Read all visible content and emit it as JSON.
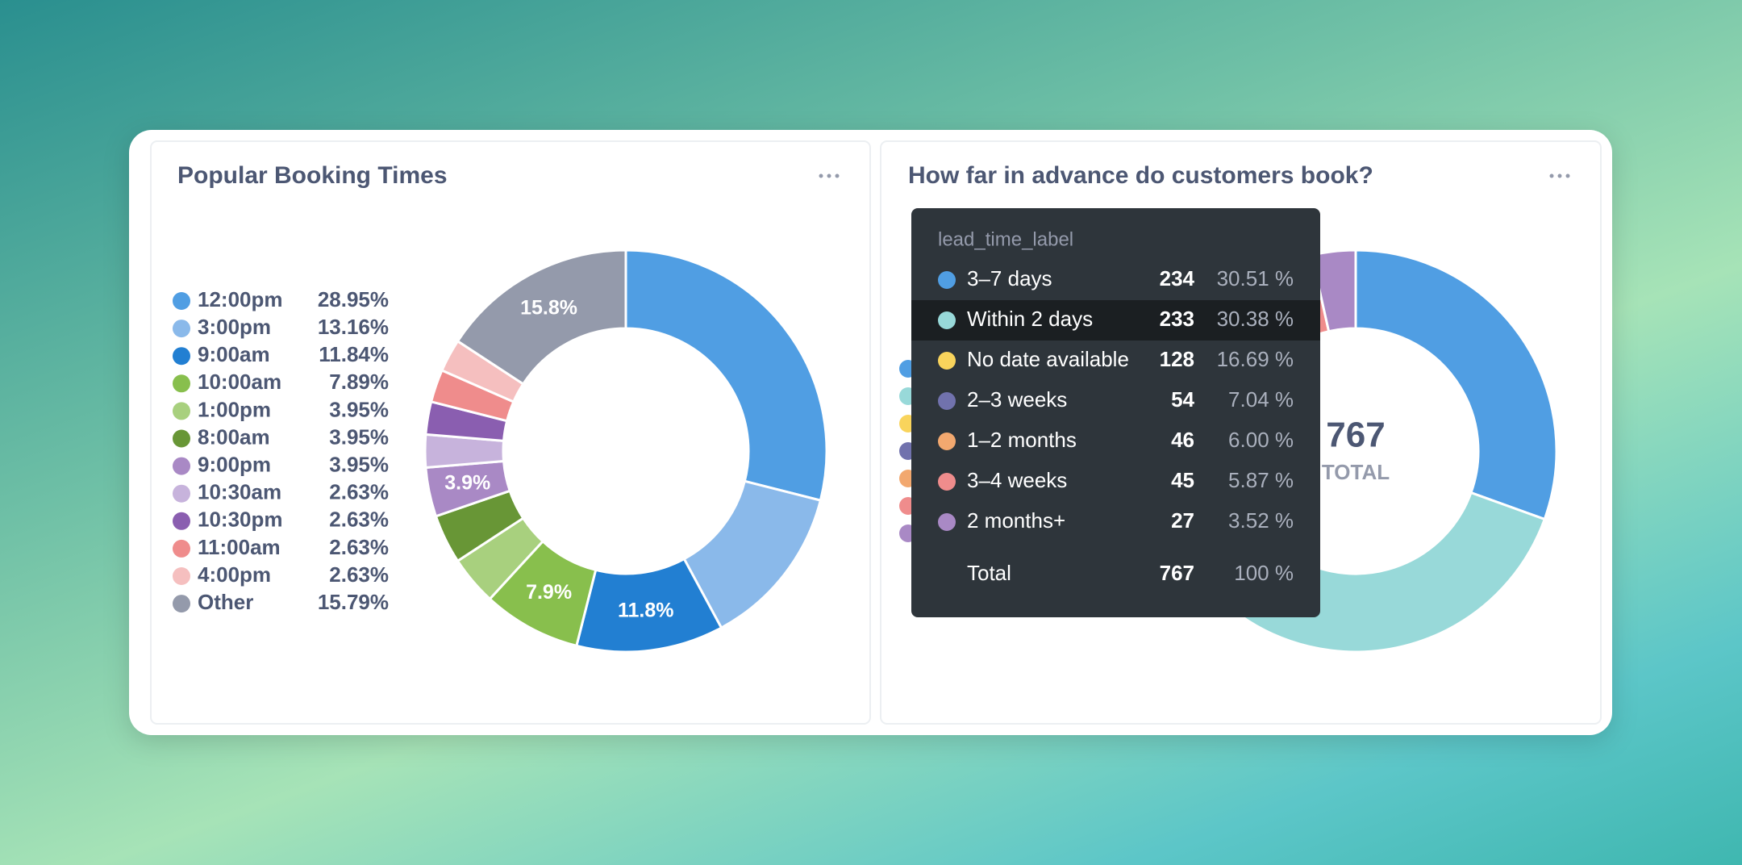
{
  "chart_data": [
    {
      "type": "pie",
      "title": "Popular Booking Times",
      "categories": [
        "12:00pm",
        "3:00pm",
        "9:00am",
        "10:00am",
        "1:00pm",
        "8:00am",
        "9:00pm",
        "10:30am",
        "10:30pm",
        "11:00am",
        "4:00pm",
        "Other"
      ],
      "values": [
        28.95,
        13.16,
        11.84,
        7.89,
        3.95,
        3.95,
        3.95,
        2.63,
        2.63,
        2.63,
        2.63,
        15.79
      ],
      "value_labels": [
        "28.95%",
        "13.16%",
        "11.84%",
        "7.89%",
        "3.95%",
        "3.95%",
        "3.95%",
        "2.63%",
        "2.63%",
        "2.63%",
        "2.63%",
        "15.79%"
      ],
      "slice_labels": [
        null,
        null,
        "11.8%",
        "7.9%",
        null,
        null,
        "3.9%",
        null,
        null,
        null,
        null,
        "15.8%"
      ],
      "colors": [
        "#509ee3",
        "#8ab9ea",
        "#227fd2",
        "#88bf4d",
        "#a8d07e",
        "#689636",
        "#a989c5",
        "#c7b3dc",
        "#8a5eb0",
        "#ef8c8c",
        "#f5bfbf",
        "#949aab"
      ]
    },
    {
      "type": "pie",
      "title": "How far in advance do customers book?",
      "categories": [
        "3–7 days",
        "Within 2 days",
        "No date available",
        "2–3 weeks",
        "1–2 months",
        "3–4 weeks",
        "2 months+"
      ],
      "values": [
        234,
        233,
        128,
        54,
        46,
        45,
        27
      ],
      "percent_labels": [
        "30.51 %",
        "30.38 %",
        "16.69 %",
        "7.04 %",
        "6.00 %",
        "5.87 %",
        "3.52 %"
      ],
      "colors": [
        "#509ee3",
        "#98d9d9",
        "#f9d45c",
        "#7172ad",
        "#f2a86f",
        "#ef8c8c",
        "#a989c5"
      ],
      "total": 767,
      "center_label": "TOTAL",
      "tooltip_header": "lead_time_label",
      "total_label": "Total",
      "total_percent_label": "100 %"
    }
  ]
}
